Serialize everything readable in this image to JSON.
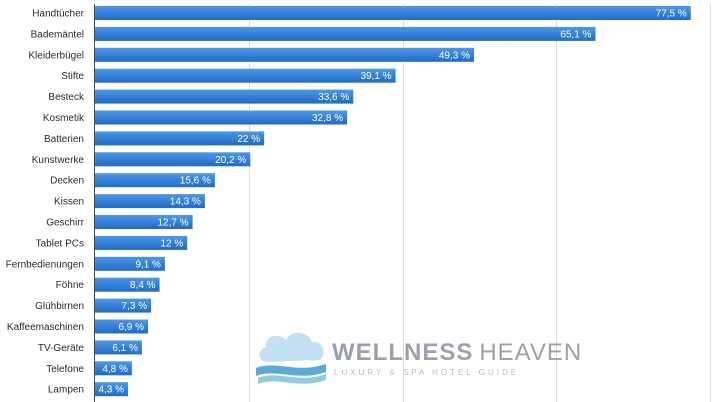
{
  "chart_data": {
    "type": "bar",
    "orientation": "horizontal",
    "categories": [
      "Handtücher",
      "Bademäntel",
      "Kleiderbügel",
      "Stifte",
      "Besteck",
      "Kosmetik",
      "Batterien",
      "Kunstwerke",
      "Decken",
      "Kissen",
      "Geschirr",
      "Tablet PCs",
      "Fernbedienungen",
      "Föhne",
      "Glühbirnen",
      "Kaffeemaschinen",
      "TV-Geräte",
      "Telefone",
      "Lampen"
    ],
    "values": [
      77.5,
      65.1,
      49.3,
      39.1,
      33.6,
      32.8,
      22,
      20.2,
      15.6,
      14.3,
      12.7,
      12,
      9.1,
      8.4,
      7.3,
      6.9,
      6.1,
      4.8,
      4.3
    ],
    "value_labels": [
      "77,5 %",
      "65,1 %",
      "49,3 %",
      "39,1 %",
      "33,6 %",
      "32,8 %",
      "22 %",
      "20,2 %",
      "15,6 %",
      "14,3 %",
      "12,7 %",
      "12 %",
      "9,1 %",
      "8,4 %",
      "7,3 %",
      "6,9 %",
      "6,1 %",
      "4,8 %",
      "4,3 %"
    ],
    "xlim": [
      0,
      80
    ],
    "grid": true,
    "bar_color": "#2f7ed8"
  },
  "watermark": {
    "title_bold": "WELLNESS",
    "title_light": "HEAVEN",
    "subtitle": "LUXURY & SPA HOTEL GUIDE"
  }
}
